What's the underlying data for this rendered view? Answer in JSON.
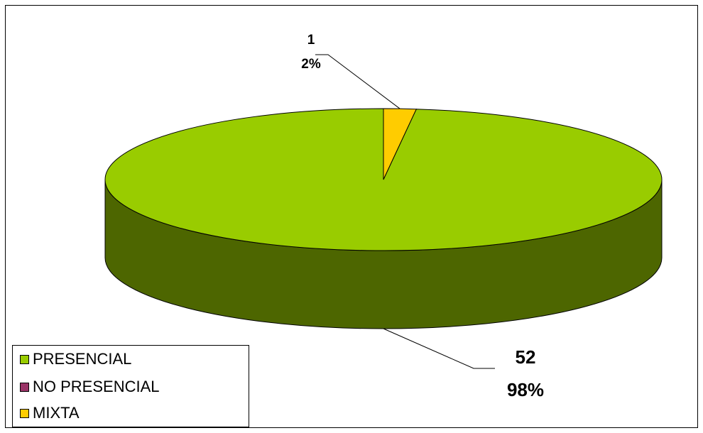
{
  "chart_data": {
    "type": "pie",
    "style": "3d",
    "categories": [
      "PRESENCIAL",
      "NO PRESENCIAL",
      "MIXTA"
    ],
    "values": [
      52,
      0,
      1
    ],
    "percent_labels": [
      "98%",
      "0%",
      "2%"
    ],
    "colors": {
      "PRESENCIAL": "#99cc00",
      "PRESENCIAL_side": "#4d6600",
      "NO PRESENCIAL": "#993366",
      "MIXTA": "#ffcc00"
    },
    "legend_placement": "bottom-left",
    "data_labels": {
      "presencial": {
        "value": "52",
        "percent": "98%"
      },
      "mixta": {
        "value": "1",
        "percent": "2%"
      }
    }
  }
}
